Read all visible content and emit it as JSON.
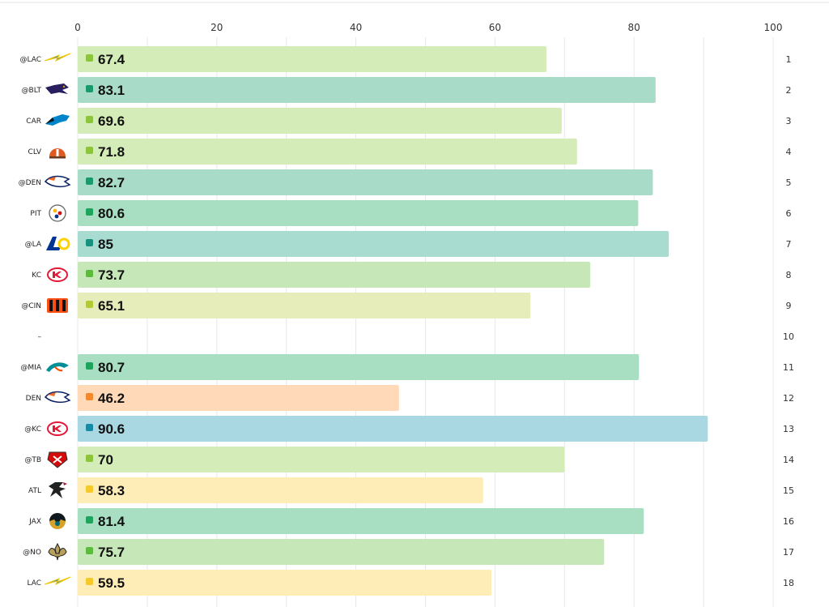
{
  "chart_data": {
    "type": "bar",
    "orientation": "horizontal",
    "xlim": [
      0,
      100
    ],
    "ticks": [
      0,
      20,
      40,
      60,
      80,
      100
    ],
    "grid": true,
    "rows": [
      {
        "week": "1",
        "team": "@LAC",
        "logo": "chargers-bolt-icon",
        "value": 67.4,
        "color": "#d4ecb8",
        "dot": "#8cc43c"
      },
      {
        "week": "2",
        "team": "@BLT",
        "logo": "ravens-icon",
        "value": 83.1,
        "color": "#a8dcc9",
        "dot": "#1a9a6c"
      },
      {
        "week": "3",
        "team": "CAR",
        "logo": "panthers-icon",
        "value": 69.6,
        "color": "#d4ecb8",
        "dot": "#8cc43c"
      },
      {
        "week": "4",
        "team": "CLV",
        "logo": "browns-icon",
        "value": 71.8,
        "color": "#d4ecb8",
        "dot": "#8cc43c"
      },
      {
        "week": "5",
        "team": "@DEN",
        "logo": "broncos-icon",
        "value": 82.7,
        "color": "#a8dcc9",
        "dot": "#1a9a6c"
      },
      {
        "week": "6",
        "team": "PIT",
        "logo": "steelers-icon",
        "value": 80.6,
        "color": "#a8dfc2",
        "dot": "#1fa45c"
      },
      {
        "week": "7",
        "team": "@LA",
        "logo": "rams-icon",
        "value": 85,
        "color": "#a8dcd0",
        "dot": "#179080"
      },
      {
        "week": "8",
        "team": "KC",
        "logo": "chiefs-icon",
        "value": 73.7,
        "color": "#c6e8b8",
        "dot": "#5cbb3c"
      },
      {
        "week": "9",
        "team": "@CIN",
        "logo": "bengals-icon",
        "value": 65.1,
        "color": "#e6edba",
        "dot": "#b5c934"
      },
      {
        "week": "10",
        "team": "–",
        "logo": "",
        "value": null,
        "color": "",
        "dot": ""
      },
      {
        "week": "11",
        "team": "@MIA",
        "logo": "dolphins-icon",
        "value": 80.7,
        "color": "#a8dfc2",
        "dot": "#1fa45c"
      },
      {
        "week": "12",
        "team": "DEN",
        "logo": "broncos-icon",
        "value": 46.2,
        "color": "#ffd9b8",
        "dot": "#f4892c"
      },
      {
        "week": "13",
        "team": "@KC",
        "logo": "chiefs-icon",
        "value": 90.6,
        "color": "#a9d8e3",
        "dot": "#178aa6"
      },
      {
        "week": "14",
        "team": "@TB",
        "logo": "buccaneers-icon",
        "value": 70,
        "color": "#d4ecb8",
        "dot": "#8cc43c"
      },
      {
        "week": "15",
        "team": "ATL",
        "logo": "falcons-icon",
        "value": 58.3,
        "color": "#ffedb8",
        "dot": "#f6c928"
      },
      {
        "week": "16",
        "team": "JAX",
        "logo": "jaguars-icon",
        "value": 81.4,
        "color": "#a8dfc2",
        "dot": "#1fa45c"
      },
      {
        "week": "17",
        "team": "@NO",
        "logo": "saints-icon",
        "value": 75.7,
        "color": "#c6e8b8",
        "dot": "#5cbb3c"
      },
      {
        "week": "18",
        "team": "LAC",
        "logo": "chargers-bolt-icon",
        "value": 59.5,
        "color": "#ffedb8",
        "dot": "#f6c928"
      }
    ]
  }
}
